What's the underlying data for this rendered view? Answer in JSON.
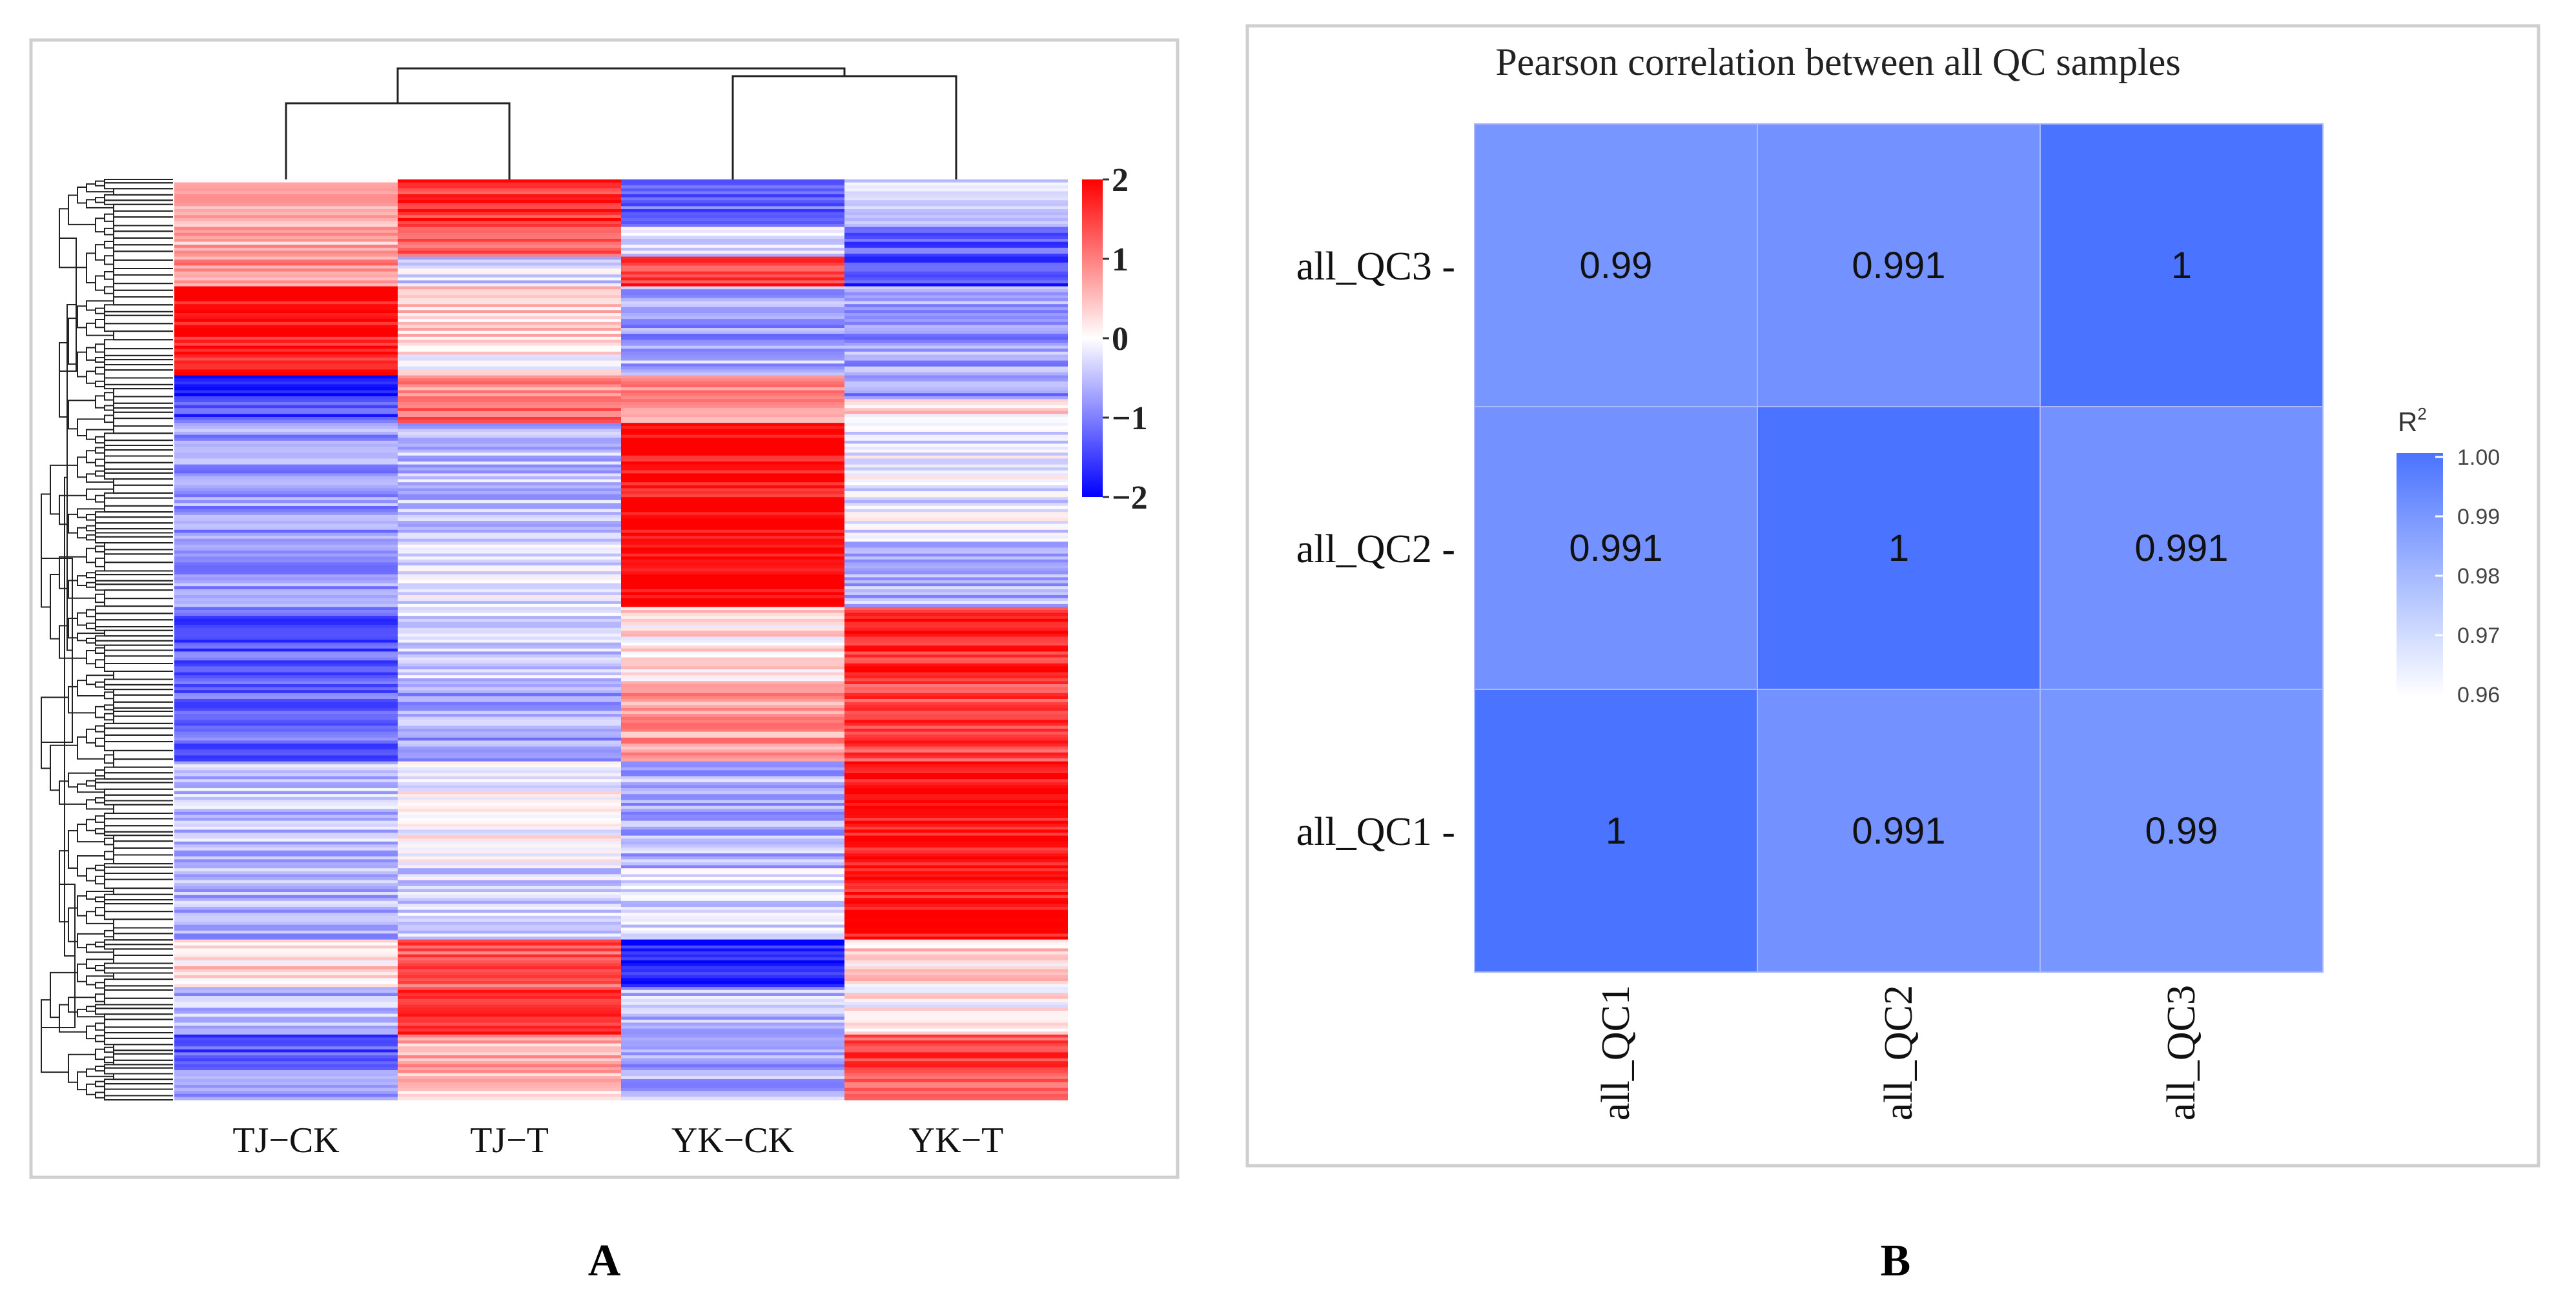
{
  "panels": {
    "a": {
      "letter": "A",
      "columns": [
        "TJ−CK",
        "TJ−T",
        "YK−CK",
        "YK−T"
      ],
      "legend_ticks": [
        "2",
        "1",
        "0",
        "−1",
        "−2"
      ]
    },
    "b": {
      "letter": "B",
      "title": "Pearson correlation between all QC samples",
      "x_labels": [
        "all_QC1",
        "all_QC2",
        "all_QC3"
      ],
      "y_labels": [
        "all_QC3",
        "all_QC2",
        "all_QC1"
      ],
      "legend_title": "R",
      "legend_superscript": "2",
      "legend_ticks": [
        "1.00",
        "0.99",
        "0.98",
        "0.97",
        "0.96"
      ]
    }
  },
  "chart_data": [
    {
      "type": "heatmap",
      "title": "",
      "columns": [
        "TJ−CK",
        "TJ−T",
        "YK−CK",
        "YK−T"
      ],
      "row_dendrogram": true,
      "column_dendrogram": true,
      "column_clusters": [
        [
          "TJ−CK",
          "TJ−T"
        ],
        [
          "YK−CK",
          "YK−T"
        ]
      ],
      "color_scale": {
        "min": -2,
        "mid": 0,
        "max": 2,
        "low": "#0000ff",
        "midColor": "#ffffff",
        "high": "#ff0000"
      },
      "row_blocks": [
        {
          "rows": 16,
          "values": [
            0.5,
            1.6,
            -1.2,
            -0.3
          ]
        },
        {
          "rows": 10,
          "values": [
            0.6,
            1.2,
            -0.2,
            -1.3
          ]
        },
        {
          "rows": 10,
          "values": [
            0.9,
            -0.3,
            1.6,
            -1.5
          ]
        },
        {
          "rows": 18,
          "values": [
            1.8,
            0.4,
            -0.8,
            -0.8
          ]
        },
        {
          "rows": 12,
          "values": [
            1.7,
            0.1,
            -0.6,
            -0.7
          ]
        },
        {
          "rows": 8,
          "values": [
            -1.8,
            0.9,
            0.8,
            -0.9
          ]
        },
        {
          "rows": 8,
          "values": [
            -1.4,
            1.2,
            0.8,
            0.3
          ]
        },
        {
          "rows": 40,
          "values": [
            -0.8,
            -0.5,
            1.9,
            -0.2
          ]
        },
        {
          "rows": 22,
          "values": [
            -0.8,
            -0.2,
            1.9,
            -0.6
          ]
        },
        {
          "rows": 26,
          "values": [
            -1.3,
            -0.4,
            0.2,
            1.7
          ]
        },
        {
          "rows": 26,
          "values": [
            -1.2,
            -0.7,
            0.8,
            1.5
          ]
        },
        {
          "rows": 36,
          "values": [
            -0.5,
            0.0,
            -0.6,
            1.9
          ]
        },
        {
          "rows": 24,
          "values": [
            -0.6,
            -0.3,
            -0.3,
            1.8
          ]
        },
        {
          "rows": 16,
          "values": [
            0.3,
            1.3,
            -1.8,
            0.3
          ]
        },
        {
          "rows": 16,
          "values": [
            -0.6,
            1.7,
            -0.5,
            0.1
          ]
        },
        {
          "rows": 12,
          "values": [
            -1.4,
            0.6,
            -0.7,
            1.5
          ]
        },
        {
          "rows": 10,
          "values": [
            -0.9,
            0.5,
            -0.6,
            1.3
          ]
        }
      ],
      "legend_ticks": [
        2,
        1,
        0,
        -1,
        -2
      ]
    },
    {
      "type": "heatmap",
      "title": "Pearson correlation between all QC samples",
      "x": [
        "all_QC1",
        "all_QC2",
        "all_QC3"
      ],
      "y": [
        "all_QC1",
        "all_QC2",
        "all_QC3"
      ],
      "values": [
        [
          1,
          0.991,
          0.99
        ],
        [
          0.991,
          1,
          0.991
        ],
        [
          0.99,
          0.991,
          1
        ]
      ],
      "cell_labels": [
        [
          "1",
          "0.991",
          "0.99"
        ],
        [
          "0.991",
          "1",
          "0.991"
        ],
        [
          "0.99",
          "0.991",
          "1"
        ]
      ],
      "legend": {
        "title": "R²",
        "min": 0.96,
        "max": 1.0,
        "ticks": [
          1.0,
          0.99,
          0.98,
          0.97,
          0.96
        ],
        "low": "#ffffff",
        "high": "#4a73ff"
      }
    }
  ]
}
